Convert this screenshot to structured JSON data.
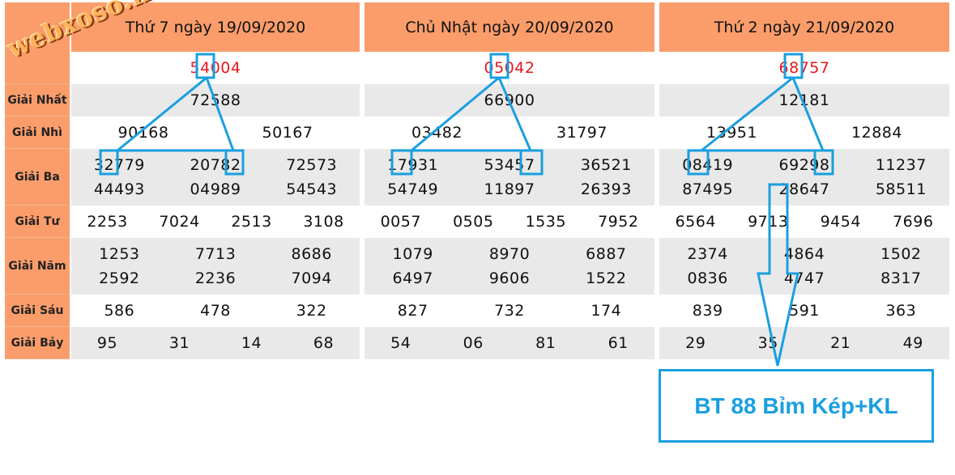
{
  "row_labels": [
    "Giải Nhất",
    "Giải Nhì",
    "Giải Ba",
    "Giải Tư",
    "Giải Năm",
    "Giải Sáu",
    "Giải Bảy"
  ],
  "watermark": "webxoso.net",
  "days": [
    {
      "title": "Thứ 7 ngày 19/09/2020",
      "db": "54004",
      "nhat": "72588",
      "nhi": [
        "90168",
        "50167"
      ],
      "ba": [
        [
          "32779",
          "20782",
          "72573"
        ],
        [
          "44493",
          "04989",
          "54543"
        ]
      ],
      "tu": [
        "2253",
        "7024",
        "2513",
        "3108"
      ],
      "nam": [
        [
          "1253",
          "7713",
          "8686"
        ],
        [
          "2592",
          "2236",
          "7094"
        ]
      ],
      "sau": [
        "586",
        "478",
        "322"
      ],
      "bay": [
        "95",
        "31",
        "14",
        "68"
      ]
    },
    {
      "title": "Chủ Nhật ngày 20/09/2020",
      "db": "05042",
      "nhat": "66900",
      "nhi": [
        "03482",
        "31797"
      ],
      "ba": [
        [
          "17931",
          "53457",
          "36521"
        ],
        [
          "54749",
          "11897",
          "26393"
        ]
      ],
      "tu": [
        "0057",
        "0505",
        "1535",
        "7952"
      ],
      "nam": [
        [
          "1079",
          "8970",
          "6887"
        ],
        [
          "6497",
          "9606",
          "1522"
        ]
      ],
      "sau": [
        "827",
        "732",
        "174"
      ],
      "bay": [
        "54",
        "06",
        "81",
        "61"
      ]
    },
    {
      "title": "Thứ 2 ngày 21/09/2020",
      "db": "68757",
      "nhat": "12181",
      "nhi": [
        "13951",
        "12884"
      ],
      "ba": [
        [
          "08419",
          "69298",
          "11237"
        ],
        [
          "87495",
          "28647",
          "58511"
        ]
      ],
      "tu": [
        "6564",
        "9713",
        "9454",
        "7696"
      ],
      "nam": [
        [
          "2374",
          "4864",
          "1502"
        ],
        [
          "0836",
          "4747",
          "8317"
        ]
      ],
      "sau": [
        "839",
        "591",
        "363"
      ],
      "bay": [
        "29",
        "35",
        "21",
        "49"
      ]
    }
  ],
  "annotation": {
    "label": "BT 88 Bỉm Kép+KL",
    "color": "#1a9fe0"
  },
  "colors": {
    "header": "#fa9d6b",
    "special": "#e8181c",
    "stripe": "#e9e9e9"
  }
}
